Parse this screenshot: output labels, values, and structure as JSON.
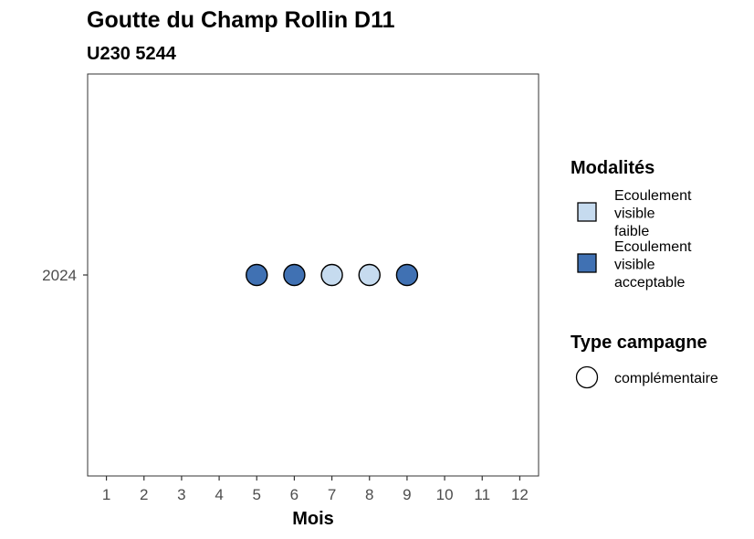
{
  "chart_data": {
    "type": "scatter",
    "title": "Goutte du Champ Rollin D11",
    "subtitle": "U230 5244",
    "xlabel": "Mois",
    "ylabel": "",
    "x_ticks": [
      "1",
      "2",
      "3",
      "4",
      "5",
      "6",
      "7",
      "8",
      "9",
      "10",
      "11",
      "12"
    ],
    "y_ticks": [
      "2024"
    ],
    "xlim": [
      0.5,
      12.5
    ],
    "grid": false,
    "legend_position": "right",
    "points": [
      {
        "x": 5,
        "y": "2024",
        "modalite": "Ecoulement visible acceptable",
        "type_campagne": "complémentaire"
      },
      {
        "x": 6,
        "y": "2024",
        "modalite": "Ecoulement visible acceptable",
        "type_campagne": "complémentaire"
      },
      {
        "x": 7,
        "y": "2024",
        "modalite": "Ecoulement visible faible",
        "type_campagne": "complémentaire"
      },
      {
        "x": 8,
        "y": "2024",
        "modalite": "Ecoulement visible faible",
        "type_campagne": "complémentaire"
      },
      {
        "x": 9,
        "y": "2024",
        "modalite": "Ecoulement visible acceptable",
        "type_campagne": "complémentaire"
      }
    ],
    "legends": [
      {
        "title": "Modalités",
        "items": [
          {
            "label_lines": [
              "Ecoulement",
              "visible",
              "faible"
            ],
            "color": "#c6dbef",
            "shape": "square"
          },
          {
            "label_lines": [
              "Ecoulement",
              "visible",
              "acceptable"
            ],
            "color": "#4071b3",
            "shape": "square"
          }
        ]
      },
      {
        "title": "Type campagne",
        "items": [
          {
            "label_lines": [
              "complémentaire"
            ],
            "color": "#ffffff",
            "shape": "circle"
          }
        ]
      }
    ],
    "colors": {
      "Ecoulement visible faible": "#c6dbef",
      "Ecoulement visible acceptable": "#4071b3"
    }
  }
}
